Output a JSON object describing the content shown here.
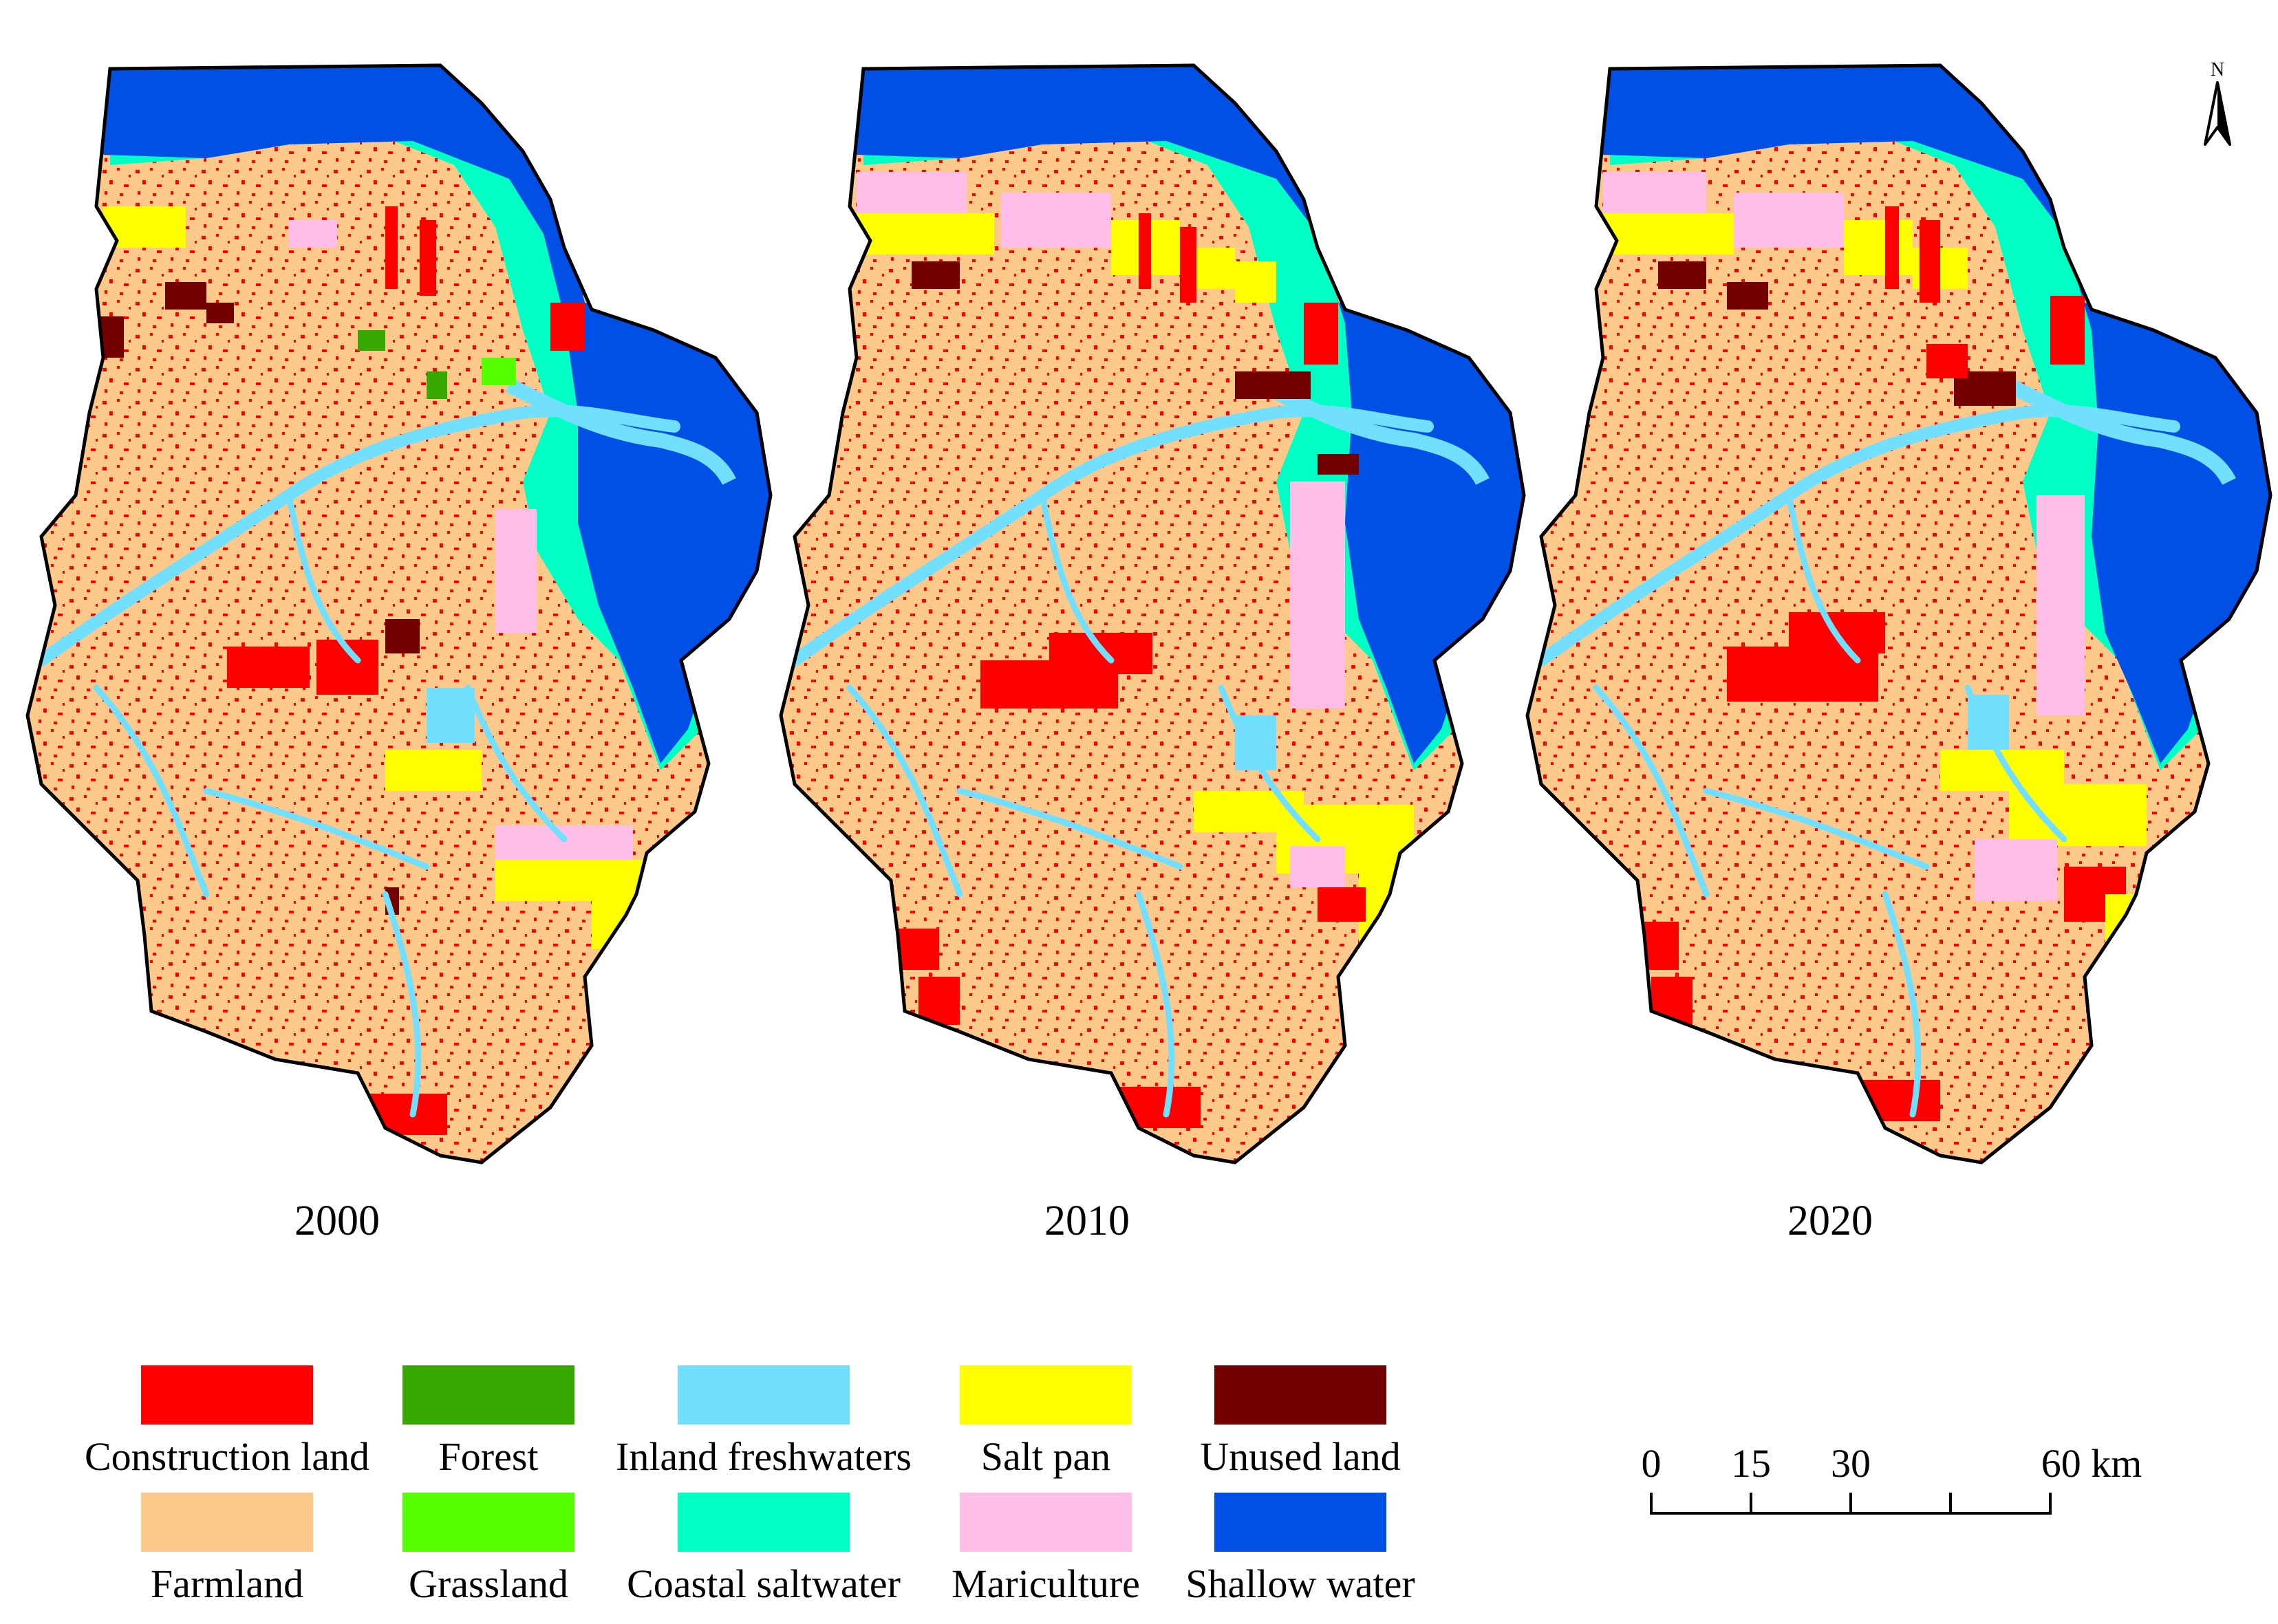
{
  "maps": [
    {
      "year": "2000"
    },
    {
      "year": "2010"
    },
    {
      "year": "2020"
    }
  ],
  "north_arrow": {
    "label": "N"
  },
  "legend": [
    {
      "label": "Construction land",
      "color": "#ff0000"
    },
    {
      "label": "Forest",
      "color": "#38a800"
    },
    {
      "label": "Inland freshwaters",
      "color": "#73dfff"
    },
    {
      "label": "Salt pan",
      "color": "#ffff00"
    },
    {
      "label": "Unused land",
      "color": "#730000"
    },
    {
      "label": "Farmland",
      "color": "#fcc98a"
    },
    {
      "label": "Grassland",
      "color": "#55ff00"
    },
    {
      "label": "Coastal saltwater",
      "color": "#00ffc5"
    },
    {
      "label": "Mariculture",
      "color": "#ffbee8"
    },
    {
      "label": "Shallow water",
      "color": "#0050e6"
    }
  ],
  "scale_bar": {
    "ticks": [
      "0",
      "15",
      "30",
      "60 km"
    ]
  }
}
